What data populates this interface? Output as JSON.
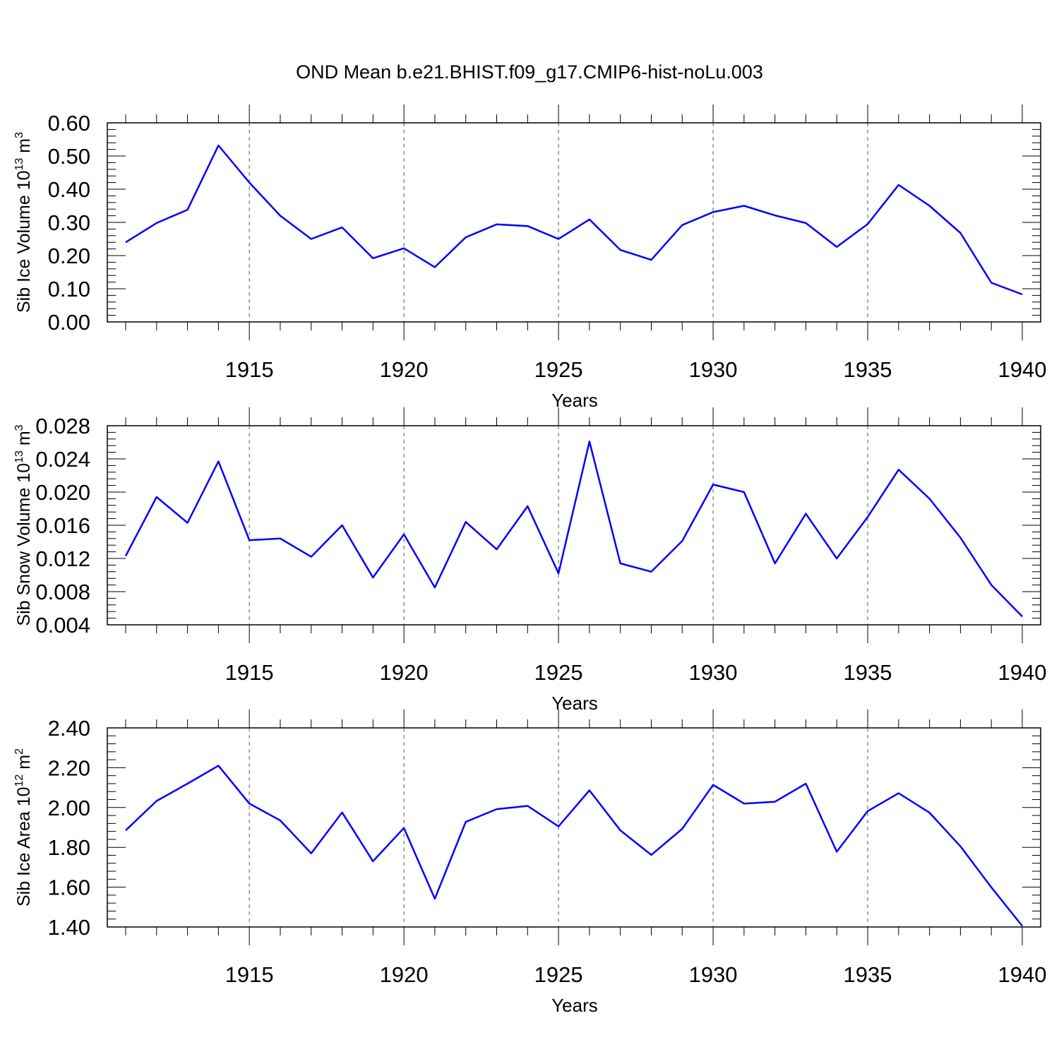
{
  "title": "OND Mean b.e21.BHIST.f09_g17.CMIP6-hist-noLu.003",
  "colors": {
    "line": "#0000ff",
    "axis": "#000000",
    "grid": "#555555"
  },
  "chart_data": [
    {
      "type": "line",
      "ylabel_text": "Sib Ice Volume 10",
      "ylabel_exp": "13",
      "ylabel_unit": " m",
      "ylabel_unit_exp": "3",
      "xlabel": "Years",
      "xlim": [
        1911,
        1940
      ],
      "ylim": [
        0.0,
        0.6
      ],
      "yticks": [
        0.0,
        0.1,
        0.2,
        0.3,
        0.4,
        0.5,
        0.6
      ],
      "ytick_labels": [
        "0.00",
        "0.10",
        "0.20",
        "0.30",
        "0.40",
        "0.50",
        "0.60"
      ],
      "xticks": [
        1915,
        1920,
        1925,
        1930,
        1935,
        1940
      ],
      "xtick_labels": [
        "1915",
        "1920",
        "1925",
        "1930",
        "1935",
        "1940"
      ],
      "grid": "vertical dashed at major x ticks",
      "x": [
        1911,
        1912,
        1913,
        1914,
        1915,
        1916,
        1917,
        1918,
        1919,
        1920,
        1921,
        1922,
        1923,
        1924,
        1925,
        1926,
        1927,
        1928,
        1929,
        1930,
        1931,
        1932,
        1933,
        1934,
        1935,
        1936,
        1937,
        1938,
        1939,
        1940
      ],
      "values": [
        0.24,
        0.298,
        0.338,
        0.532,
        0.42,
        0.32,
        0.25,
        0.285,
        0.192,
        0.222,
        0.165,
        0.255,
        0.294,
        0.289,
        0.25,
        0.309,
        0.217,
        0.187,
        0.292,
        0.331,
        0.35,
        0.321,
        0.298,
        0.226,
        0.295,
        0.413,
        0.35,
        0.268,
        0.118,
        0.083
      ]
    },
    {
      "type": "line",
      "ylabel_text": "Sib Snow Volume 10",
      "ylabel_exp": "13",
      "ylabel_unit": " m",
      "ylabel_unit_exp": "3",
      "xlabel": "Years",
      "xlim": [
        1911,
        1940
      ],
      "ylim": [
        0.004,
        0.028
      ],
      "yticks": [
        0.004,
        0.008,
        0.012,
        0.016,
        0.02,
        0.024,
        0.028
      ],
      "ytick_labels": [
        "0.004",
        "0.008",
        "0.012",
        "0.016",
        "0.020",
        "0.024",
        "0.028"
      ],
      "xticks": [
        1915,
        1920,
        1925,
        1930,
        1935,
        1940
      ],
      "xtick_labels": [
        "1915",
        "1920",
        "1925",
        "1930",
        "1935",
        "1940"
      ],
      "grid": "vertical dashed at major x ticks",
      "x": [
        1911,
        1912,
        1913,
        1914,
        1915,
        1916,
        1917,
        1918,
        1919,
        1920,
        1921,
        1922,
        1923,
        1924,
        1925,
        1926,
        1927,
        1928,
        1929,
        1930,
        1931,
        1932,
        1933,
        1934,
        1935,
        1936,
        1937,
        1938,
        1939,
        1940
      ],
      "values": [
        0.0123,
        0.0194,
        0.0163,
        0.0237,
        0.0142,
        0.0144,
        0.0122,
        0.016,
        0.0097,
        0.0149,
        0.0085,
        0.0164,
        0.0131,
        0.0183,
        0.0102,
        0.0261,
        0.0114,
        0.0104,
        0.0141,
        0.0209,
        0.02,
        0.0114,
        0.0174,
        0.012,
        0.017,
        0.0227,
        0.0192,
        0.0145,
        0.0088,
        0.005
      ]
    },
    {
      "type": "line",
      "ylabel_text": "Sib Ice Area 10",
      "ylabel_exp": "12",
      "ylabel_unit": " m",
      "ylabel_unit_exp": "2",
      "xlabel": "Years",
      "xlim": [
        1911,
        1940
      ],
      "ylim": [
        1.4,
        2.4
      ],
      "yticks": [
        1.4,
        1.6,
        1.8,
        2.0,
        2.2,
        2.4
      ],
      "ytick_labels": [
        "1.40",
        "1.60",
        "1.80",
        "2.00",
        "2.20",
        "2.40"
      ],
      "xticks": [
        1915,
        1920,
        1925,
        1930,
        1935,
        1940
      ],
      "xtick_labels": [
        "1915",
        "1920",
        "1925",
        "1930",
        "1935",
        "1940"
      ],
      "grid": "vertical dashed at major x ticks",
      "x": [
        1911,
        1912,
        1913,
        1914,
        1915,
        1916,
        1917,
        1918,
        1919,
        1920,
        1921,
        1922,
        1923,
        1924,
        1925,
        1926,
        1927,
        1928,
        1929,
        1930,
        1931,
        1932,
        1933,
        1934,
        1935,
        1936,
        1937,
        1938,
        1939,
        1940
      ],
      "values": [
        1.885,
        2.033,
        2.12,
        2.21,
        2.02,
        1.935,
        1.77,
        1.975,
        1.73,
        1.897,
        1.542,
        1.928,
        1.992,
        2.008,
        1.905,
        2.086,
        1.885,
        1.762,
        1.893,
        2.114,
        2.02,
        2.029,
        2.12,
        1.778,
        1.982,
        2.072,
        1.974,
        1.805,
        1.599,
        1.405
      ]
    }
  ]
}
